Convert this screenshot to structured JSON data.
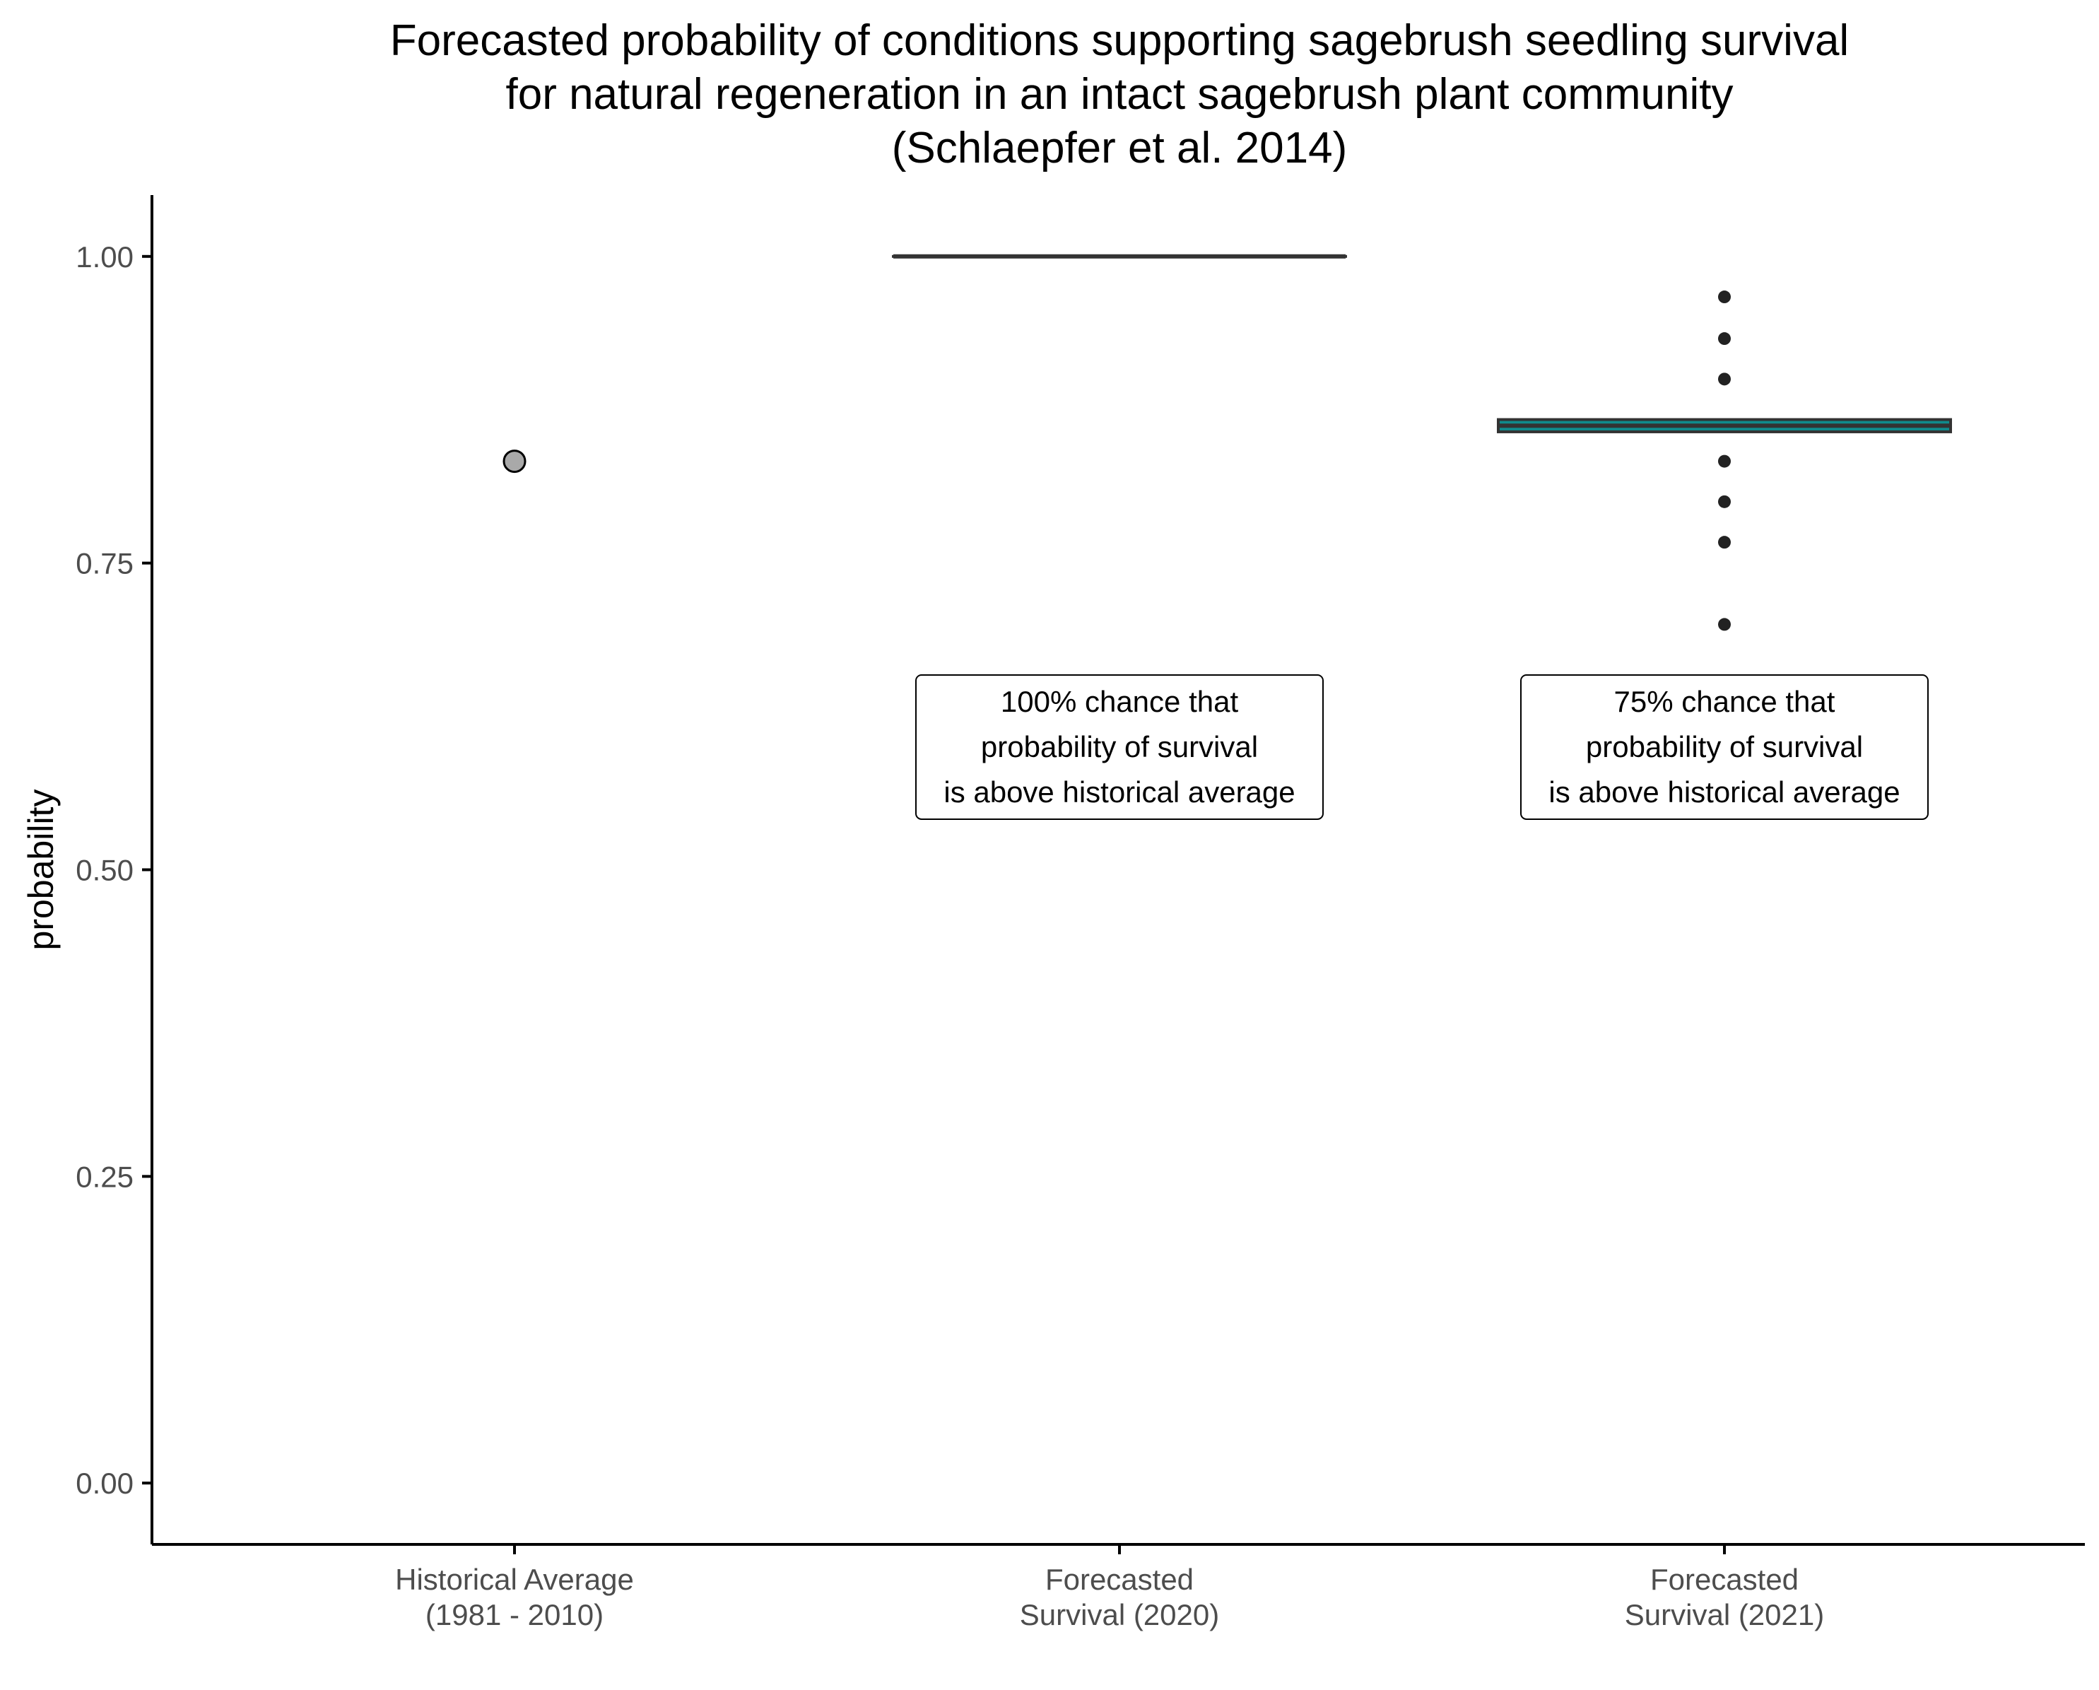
{
  "chart_data": {
    "type": "boxplot",
    "title_lines": [
      "Forecasted probability of conditions supporting sagebrush seedling survival",
      "for natural regeneration in an intact sagebrush plant community",
      "(Schlaepfer et al. 2014)"
    ],
    "xlabel": "",
    "ylabel": "probability",
    "ylim": [
      -0.05,
      1.05
    ],
    "yticks": [
      0.0,
      0.25,
      0.5,
      0.75,
      1.0
    ],
    "ytick_labels": [
      "0.00",
      "0.25",
      "0.50",
      "0.75",
      "1.00"
    ],
    "categories": [
      {
        "lines": [
          "Historical Average",
          "(1981 - 2010)"
        ]
      },
      {
        "lines": [
          "Forecasted",
          "Survival (2020)"
        ]
      },
      {
        "lines": [
          "Forecasted",
          "Survival (2021)"
        ]
      }
    ],
    "grid": false,
    "legend": "none",
    "point": {
      "category_index": 0,
      "value": 0.833,
      "fill": "#a9a9a9",
      "stroke": "#000000"
    },
    "boxes": [
      {
        "category_index": 1,
        "q1": 1.0,
        "median": 1.0,
        "q3": 1.0,
        "whisker_low": 1.0,
        "whisker_high": 1.0,
        "fill": "#0f8b8d",
        "outliers": []
      },
      {
        "category_index": 2,
        "q1": 0.857,
        "median": 0.862,
        "q3": 0.867,
        "whisker_low": 0.857,
        "whisker_high": 0.867,
        "fill": "#0f8b8d",
        "outliers": [
          0.967,
          0.933,
          0.9,
          0.833,
          0.8,
          0.767,
          0.7
        ]
      }
    ],
    "annotations": [
      {
        "category_index": 1,
        "y": 0.6,
        "lines": [
          "100% chance that",
          "probability of survival",
          "is above historical average"
        ]
      },
      {
        "category_index": 2,
        "y": 0.6,
        "lines": [
          "75% chance that",
          "probability of survival",
          "is above historical average"
        ]
      }
    ],
    "colors": {
      "axis": "#000000",
      "tick_text": "#4d4d4d",
      "box_line": "#333333",
      "outlier": "#222222"
    }
  }
}
